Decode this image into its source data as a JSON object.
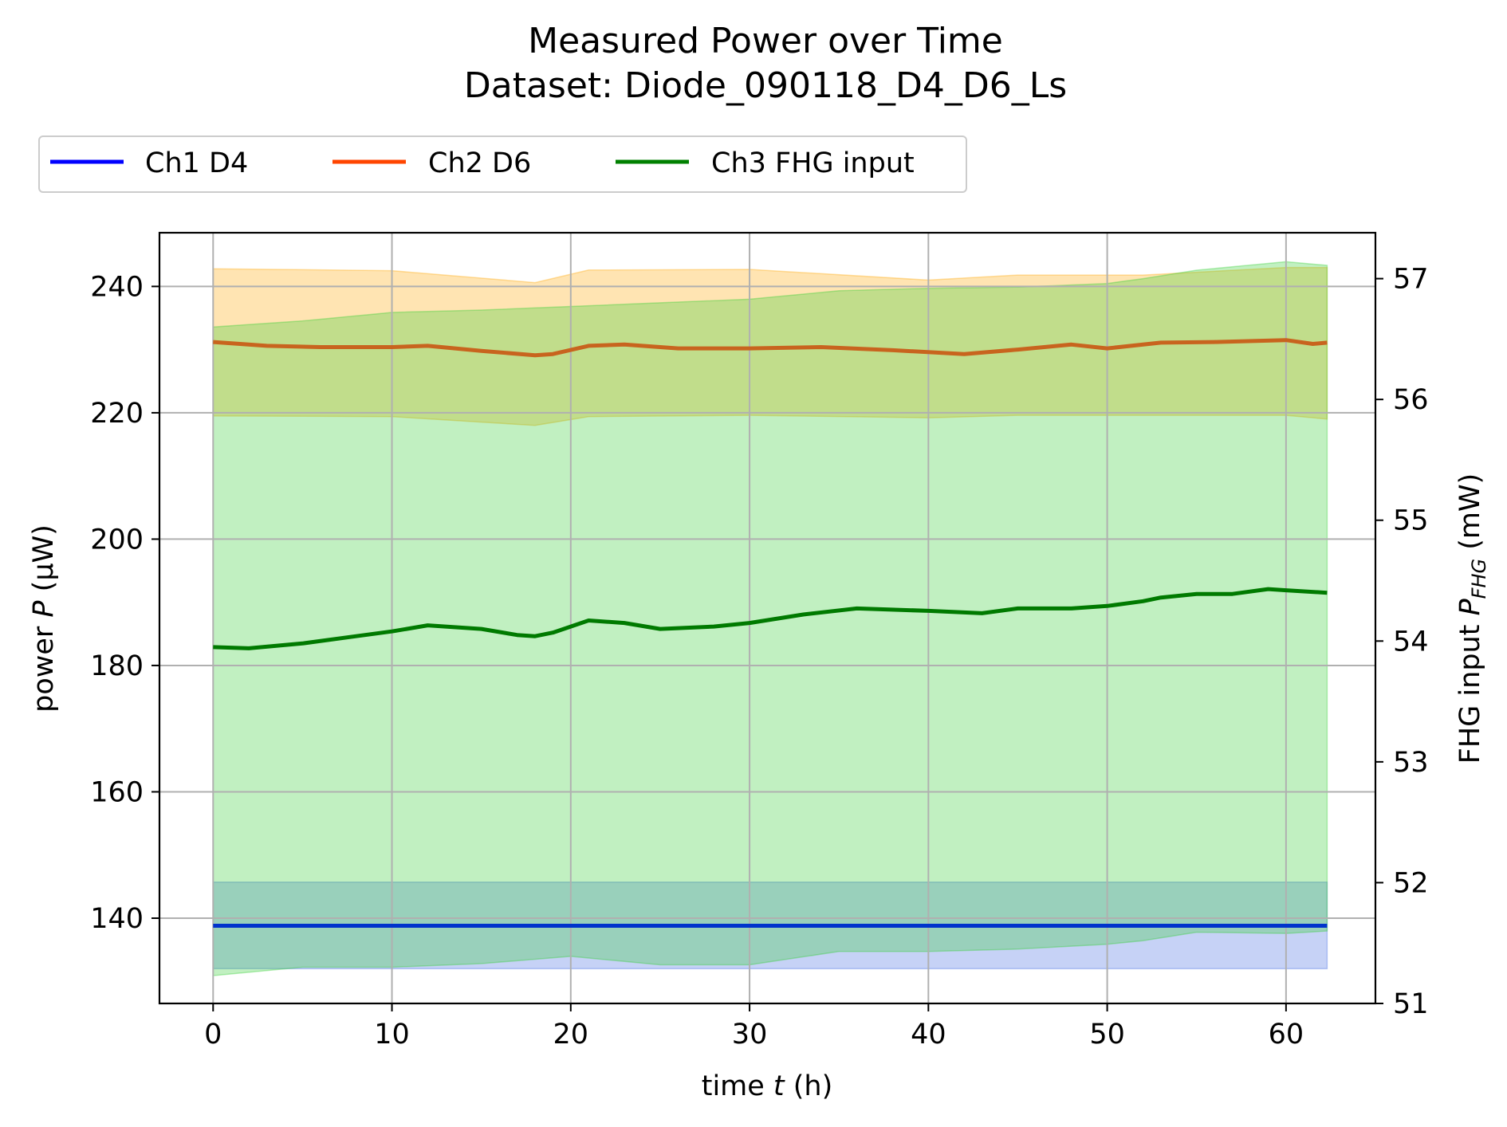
{
  "chart_data": {
    "type": "line",
    "title": "Measured Power over Time",
    "subtitle": "Dataset: Diode_090118_D4_D6_Ls",
    "xlabel": {
      "prefix": "time ",
      "var": "t",
      "suffix": " (h)"
    },
    "ylabel": {
      "prefix": "power ",
      "var": "P",
      "suffix": " (μW)"
    },
    "y2label": {
      "prefix": "FHG input ",
      "var": "P",
      "sub": "FHG",
      "suffix": " (mW)"
    },
    "xlim": [
      -3,
      65
    ],
    "ylim": [
      126.5,
      248.5
    ],
    "y2lim": [
      51.0,
      57.38
    ],
    "xticks": [
      0,
      10,
      20,
      30,
      40,
      50,
      60
    ],
    "yticks": [
      140,
      160,
      180,
      200,
      220,
      240
    ],
    "y2ticks": [
      51,
      52,
      53,
      54,
      55,
      56,
      57
    ],
    "grid": true,
    "legend_position": "top-left, above axes",
    "colors": {
      "ch1": "#0000ff",
      "ch2": "#ff4500",
      "ch3": "#008000"
    },
    "series": [
      {
        "name": "Ch1 D4",
        "axis": "left",
        "x": [
          0,
          62.3
        ],
        "values": [
          138.8,
          138.8
        ],
        "band": {
          "x": [
            0,
            62.3
          ],
          "lower": [
            132.0,
            132.0
          ],
          "upper": [
            145.7,
            145.7
          ]
        }
      },
      {
        "name": "Ch2 D6",
        "axis": "left",
        "x": [
          0,
          3,
          6,
          10,
          12,
          15,
          18,
          19,
          21,
          23,
          26,
          30,
          34,
          38,
          42,
          45,
          48,
          50,
          53,
          56,
          60,
          61.5,
          62.3
        ],
        "values": [
          231.2,
          230.6,
          230.4,
          230.4,
          230.6,
          229.8,
          229.1,
          229.3,
          230.6,
          230.8,
          230.2,
          230.2,
          230.4,
          229.9,
          229.3,
          230.0,
          230.8,
          230.2,
          231.1,
          231.2,
          231.5,
          230.9,
          231.1
        ],
        "band": {
          "x": [
            0,
            10,
            18,
            21,
            30,
            40,
            45,
            52,
            60,
            62.3
          ],
          "lower": [
            219.5,
            219.4,
            218.0,
            219.4,
            219.6,
            219.2,
            219.6,
            219.6,
            219.6,
            219.0
          ],
          "upper": [
            242.8,
            242.5,
            240.6,
            242.6,
            242.7,
            241.0,
            241.8,
            241.8,
            243.0,
            243.0
          ]
        }
      },
      {
        "name": "Ch3 FHG input",
        "axis": "right",
        "x": [
          0,
          2,
          5,
          8,
          10,
          12,
          15,
          17,
          18,
          19,
          21,
          23,
          25,
          28,
          30,
          33,
          36,
          40,
          43,
          45,
          48,
          50,
          52,
          53,
          55,
          57,
          59,
          60,
          62.3
        ],
        "values": [
          53.95,
          53.94,
          53.98,
          54.04,
          54.08,
          54.13,
          54.1,
          54.05,
          54.04,
          54.07,
          54.17,
          54.15,
          54.1,
          54.12,
          54.15,
          54.22,
          54.27,
          54.25,
          54.23,
          54.27,
          54.27,
          54.29,
          54.33,
          54.36,
          54.39,
          54.39,
          54.43,
          54.42,
          54.4
        ],
        "band": {
          "x": [
            0,
            5,
            10,
            15,
            20,
            25,
            30,
            35,
            40,
            45,
            50,
            52,
            55,
            60,
            62.3
          ],
          "lower": [
            51.23,
            51.3,
            51.3,
            51.33,
            51.39,
            51.32,
            51.32,
            51.43,
            51.43,
            51.45,
            51.49,
            51.52,
            51.59,
            51.58,
            51.6
          ],
          "upper": [
            56.6,
            56.65,
            56.72,
            56.74,
            56.77,
            56.8,
            56.83,
            56.9,
            56.92,
            56.93,
            56.96,
            57.0,
            57.07,
            57.14,
            57.11
          ]
        }
      }
    ]
  }
}
